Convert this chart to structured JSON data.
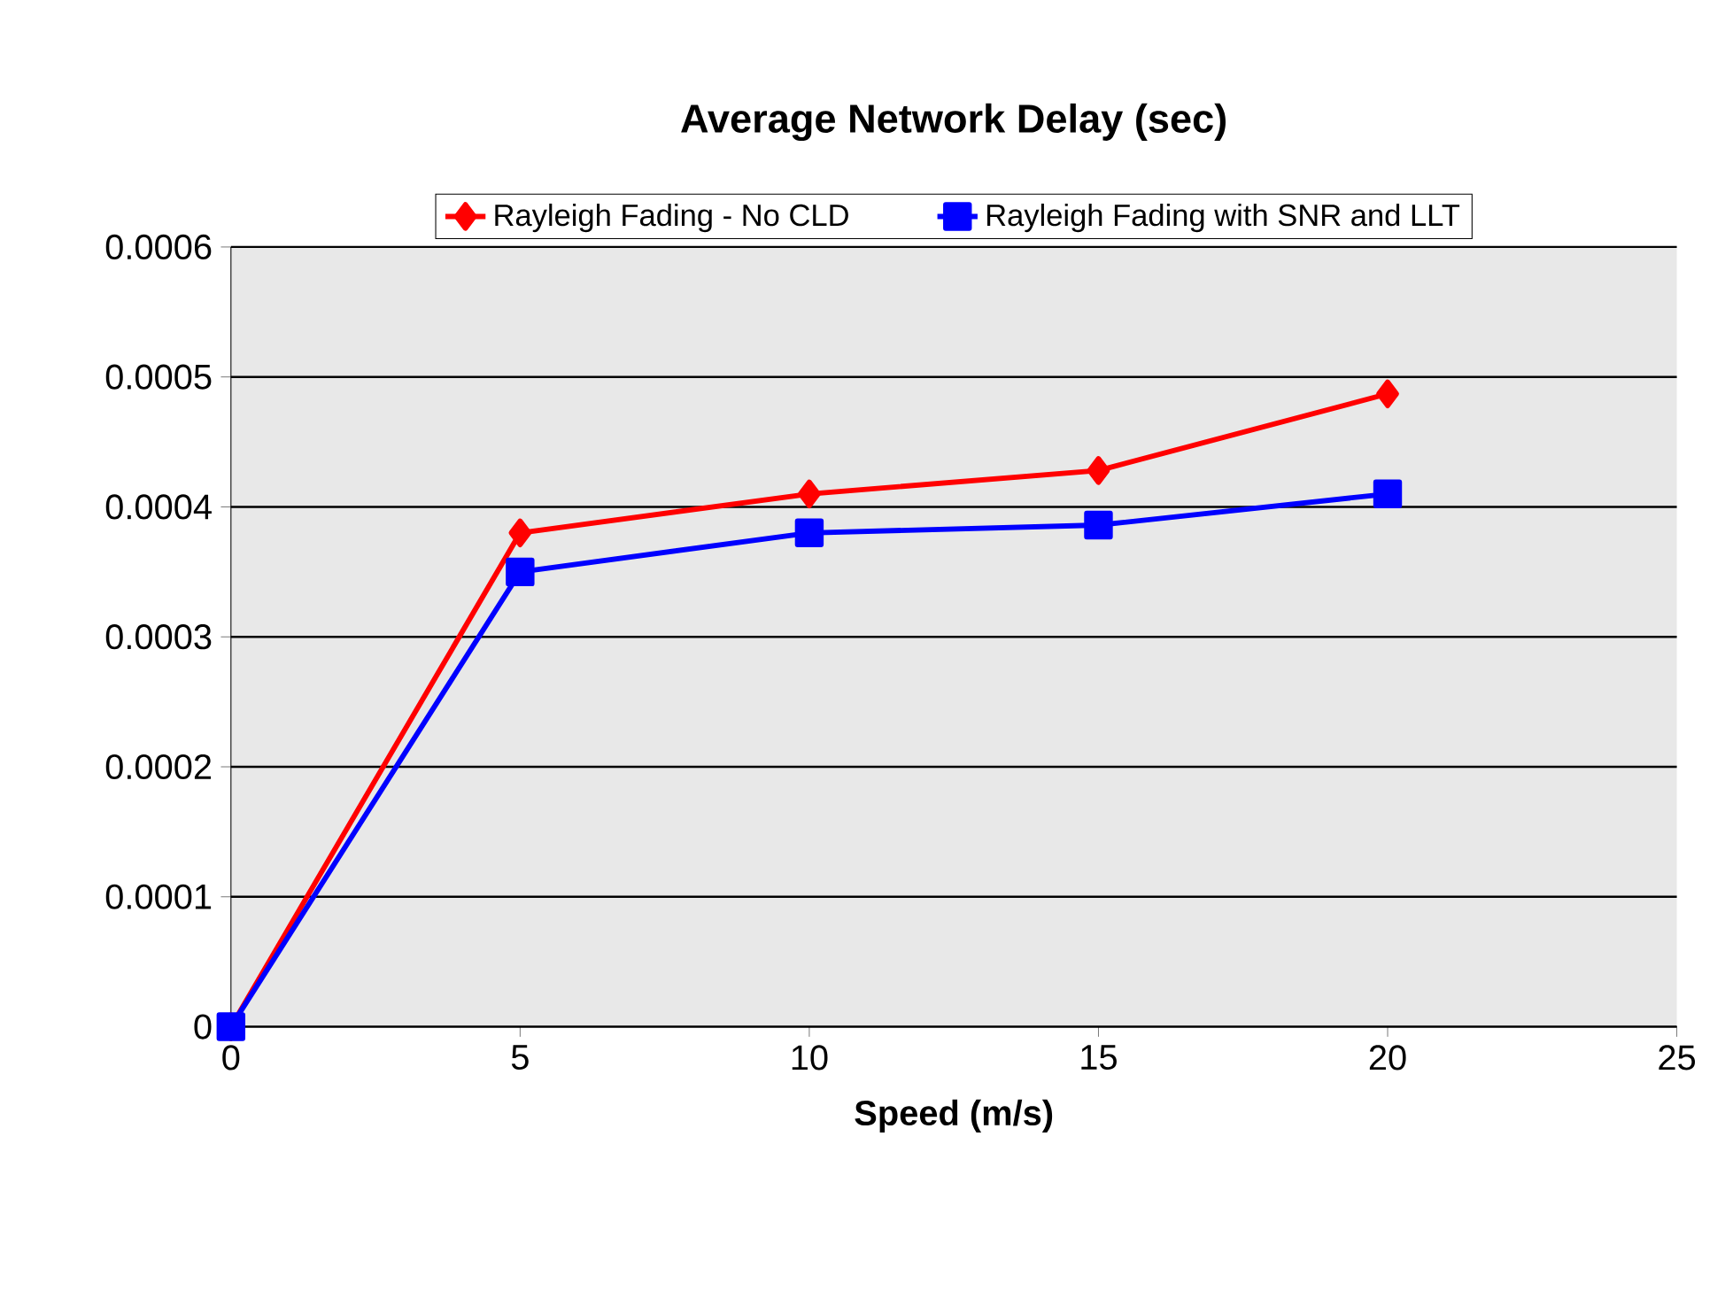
{
  "chart_data": {
    "type": "line",
    "title": "Average Network Delay (sec)",
    "xlabel": "Speed (m/s)",
    "x": [
      0,
      5,
      10,
      15,
      20
    ],
    "series": [
      {
        "name": "Rayleigh Fading - No CLD",
        "color": "#ff0000",
        "marker": "diamond",
        "values": [
          0,
          0.00038,
          0.00041,
          0.000428,
          0.000487
        ]
      },
      {
        "name": "Rayleigh Fading with SNR and LLT",
        "color": "#0000ff",
        "marker": "square",
        "values": [
          0,
          0.00035,
          0.00038,
          0.000386,
          0.00041
        ]
      }
    ],
    "xlim": [
      0,
      25
    ],
    "xticks": [
      0,
      5,
      10,
      15,
      20,
      25
    ],
    "ylim": [
      0,
      0.0006
    ],
    "yticks": [
      {
        "value": 0,
        "label": "0"
      },
      {
        "value": 0.0001,
        "label": "0.0001"
      },
      {
        "value": 0.0002,
        "label": "0.0002"
      },
      {
        "value": 0.0003,
        "label": "0.0003"
      },
      {
        "value": 0.0004,
        "label": "0.0004"
      },
      {
        "value": 0.0005,
        "label": "0.0005"
      },
      {
        "value": 0.0006,
        "label": "0.0006"
      }
    ],
    "grid": "y",
    "legend": "top",
    "line_style": "solid"
  }
}
